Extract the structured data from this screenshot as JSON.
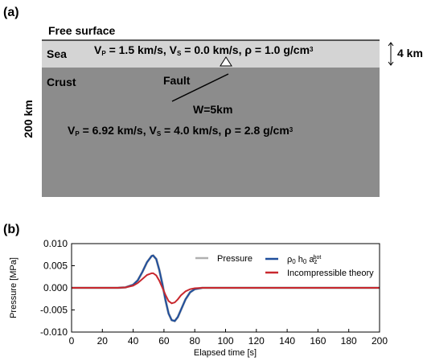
{
  "panel_a": {
    "label": "(a)",
    "free_surface": "Free surface",
    "sea": "Sea",
    "sea_params": [
      "V",
      "P",
      " = 1.5 km/s, V",
      "S",
      " = 0.0 km/s, ρ = 1.0 g/cm",
      "3"
    ],
    "sea_depth": "4 km",
    "crust": "Crust",
    "fault": "Fault",
    "fault_width": "W=5km",
    "depth": "200 km",
    "crust_params": [
      "V",
      "P",
      " = 6.92 km/s, V",
      "S",
      " = 4.0 km/s, ρ = 2.8 g/cm",
      "3"
    ]
  },
  "chart_data": {
    "type": "line",
    "panel_label": "(b)",
    "x_label": "Elapsed time [s]",
    "y_label": "Pressure [MPa]",
    "x": [
      0,
      10,
      20,
      30,
      35,
      40,
      43,
      46,
      49,
      52,
      53,
      55,
      57,
      59,
      61,
      63,
      65,
      67,
      69,
      71,
      74,
      77,
      80,
      85,
      90,
      100,
      120,
      140,
      160,
      180,
      200
    ],
    "series": [
      {
        "name": [
          "Pressure"
        ],
        "color": "#b0b0b0",
        "values": [
          0,
          0,
          0,
          0,
          0.0001,
          0.0007,
          0.0017,
          0.0036,
          0.0058,
          0.0072,
          0.0073,
          0.0065,
          0.004,
          0.0008,
          -0.0028,
          -0.0058,
          -0.0073,
          -0.0075,
          -0.0066,
          -0.005,
          -0.0026,
          -0.001,
          -0.0003,
          0,
          0,
          0,
          0,
          0,
          0,
          0,
          0
        ]
      },
      {
        "name": [
          "ρ",
          "0",
          " h",
          "0",
          " a",
          "z",
          "bot"
        ],
        "color": "#1f4e9c",
        "values": [
          0,
          0,
          0,
          0,
          0.0001,
          0.0007,
          0.0017,
          0.0036,
          0.0058,
          0.0072,
          0.0073,
          0.0065,
          0.004,
          0.0008,
          -0.0028,
          -0.0058,
          -0.0073,
          -0.0075,
          -0.0066,
          -0.005,
          -0.0026,
          -0.001,
          -0.0003,
          0,
          0,
          0,
          0,
          0,
          0,
          0,
          0
        ]
      },
      {
        "name": [
          "Incompressible theory"
        ],
        "color": "#c8282e",
        "values": [
          0,
          0,
          0,
          0,
          0.0001,
          0.0005,
          0.0011,
          0.002,
          0.0029,
          0.0033,
          0.0033,
          0.0028,
          0.0016,
          0,
          -0.0016,
          -0.003,
          -0.0035,
          -0.0033,
          -0.0026,
          -0.0017,
          -0.0008,
          -0.0003,
          -0.0001,
          0,
          0,
          0,
          0,
          0,
          0,
          0,
          0
        ]
      }
    ],
    "xlim": [
      0,
      200
    ],
    "xticks": [
      0,
      20,
      40,
      60,
      80,
      100,
      120,
      140,
      160,
      180,
      200
    ],
    "ylim": [
      -0.01,
      0.01
    ],
    "yticks": [
      {
        "value": -0.01,
        "label": "-0.010"
      },
      {
        "value": -0.005,
        "label": "-0.005"
      },
      {
        "value": 0,
        "label": "0.000"
      },
      {
        "value": 0.005,
        "label": "0.005"
      },
      {
        "value": 0.01,
        "label": "0.010"
      }
    ]
  }
}
